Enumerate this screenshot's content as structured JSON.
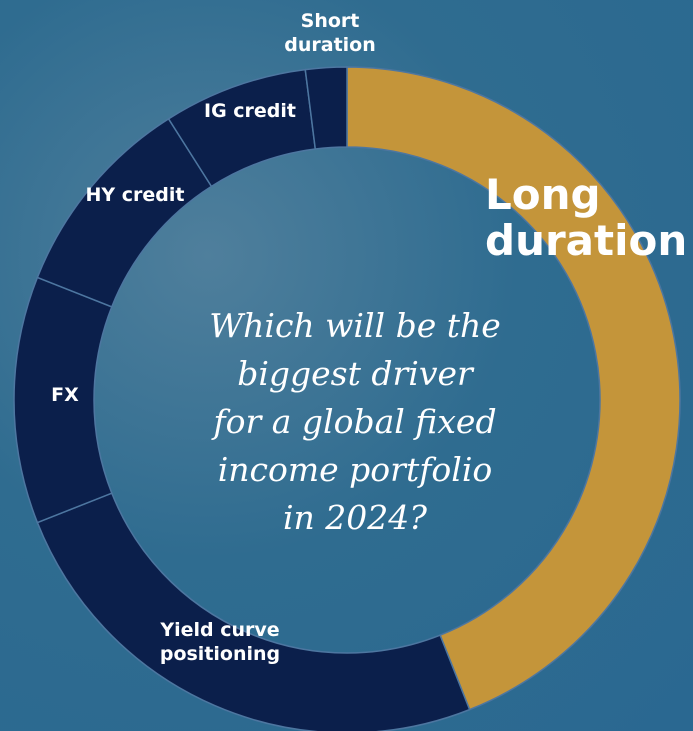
{
  "chart_data": {
    "type": "donut",
    "categories": [
      "Long duration",
      "Yield curve positioning",
      "FX",
      "HY credit",
      "IG credit",
      "Short duration"
    ],
    "values": [
      44,
      25,
      12,
      10,
      7,
      2
    ],
    "colors": [
      "#c4953a",
      "#0b1f4b",
      "#0b1f4b",
      "#0b1f4b",
      "#0b1f4b",
      "#0b1f4b"
    ],
    "center_text": [
      "Which will be the",
      "biggest driver",
      "for a global fixed",
      "income portfolio",
      "in 2024?"
    ]
  }
}
